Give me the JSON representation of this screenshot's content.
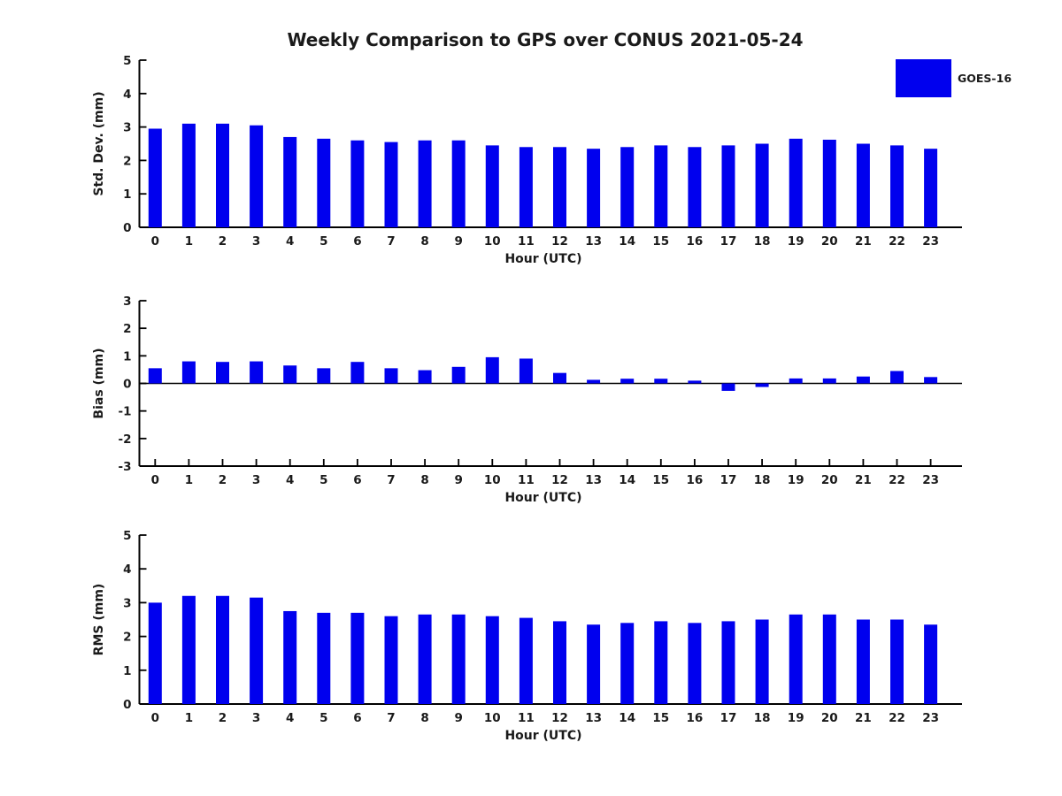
{
  "title": "Weekly Comparison to GPS over CONUS 2021-05-24",
  "legend": {
    "label": "GOES-16",
    "color": "#0000EE"
  },
  "colors": {
    "bar": "#0000EE",
    "axis": "#000000",
    "background": "#FFFFFF"
  },
  "chart_data": [
    {
      "type": "bar",
      "series_name": "GOES-16",
      "categories": [
        "0",
        "1",
        "2",
        "3",
        "4",
        "5",
        "6",
        "7",
        "8",
        "9",
        "10",
        "11",
        "12",
        "13",
        "14",
        "15",
        "16",
        "17",
        "18",
        "19",
        "20",
        "21",
        "22",
        "23"
      ],
      "values": [
        2.95,
        3.1,
        3.1,
        3.05,
        2.7,
        2.65,
        2.6,
        2.55,
        2.6,
        2.6,
        2.45,
        2.4,
        2.4,
        2.35,
        2.4,
        2.45,
        2.4,
        2.45,
        2.5,
        2.65,
        2.62,
        2.5,
        2.45,
        2.35
      ],
      "xlabel": "Hour (UTC)",
      "ylabel": "Std. Dev. (mm)",
      "ylim": [
        0,
        5
      ],
      "yticks": [
        0,
        1,
        2,
        3,
        4,
        5
      ],
      "grid": false,
      "legend_position": "upper-right-outside"
    },
    {
      "type": "bar",
      "series_name": "GOES-16",
      "categories": [
        "0",
        "1",
        "2",
        "3",
        "4",
        "5",
        "6",
        "7",
        "8",
        "9",
        "10",
        "11",
        "12",
        "13",
        "14",
        "15",
        "16",
        "17",
        "18",
        "19",
        "20",
        "21",
        "22",
        "23"
      ],
      "values": [
        0.55,
        0.8,
        0.78,
        0.8,
        0.65,
        0.55,
        0.78,
        0.55,
        0.48,
        0.6,
        0.95,
        0.9,
        0.38,
        0.13,
        0.17,
        0.17,
        0.1,
        -0.27,
        -0.13,
        0.18,
        0.18,
        0.25,
        0.45,
        0.23
      ],
      "xlabel": "Hour (UTC)",
      "ylabel": "Bias (mm)",
      "ylim": [
        -3,
        3
      ],
      "yticks": [
        -3,
        -2,
        -1,
        0,
        1,
        2,
        3
      ],
      "grid": false,
      "zero_line": true
    },
    {
      "type": "bar",
      "series_name": "GOES-16",
      "categories": [
        "0",
        "1",
        "2",
        "3",
        "4",
        "5",
        "6",
        "7",
        "8",
        "9",
        "10",
        "11",
        "12",
        "13",
        "14",
        "15",
        "16",
        "17",
        "18",
        "19",
        "20",
        "21",
        "22",
        "23"
      ],
      "values": [
        3.0,
        3.2,
        3.2,
        3.15,
        2.75,
        2.7,
        2.7,
        2.6,
        2.65,
        2.65,
        2.6,
        2.55,
        2.45,
        2.35,
        2.4,
        2.45,
        2.4,
        2.45,
        2.5,
        2.65,
        2.65,
        2.5,
        2.5,
        2.35
      ],
      "xlabel": "Hour (UTC)",
      "ylabel": "RMS (mm)",
      "ylim": [
        0,
        5
      ],
      "yticks": [
        0,
        1,
        2,
        3,
        4,
        5
      ],
      "grid": false
    }
  ]
}
